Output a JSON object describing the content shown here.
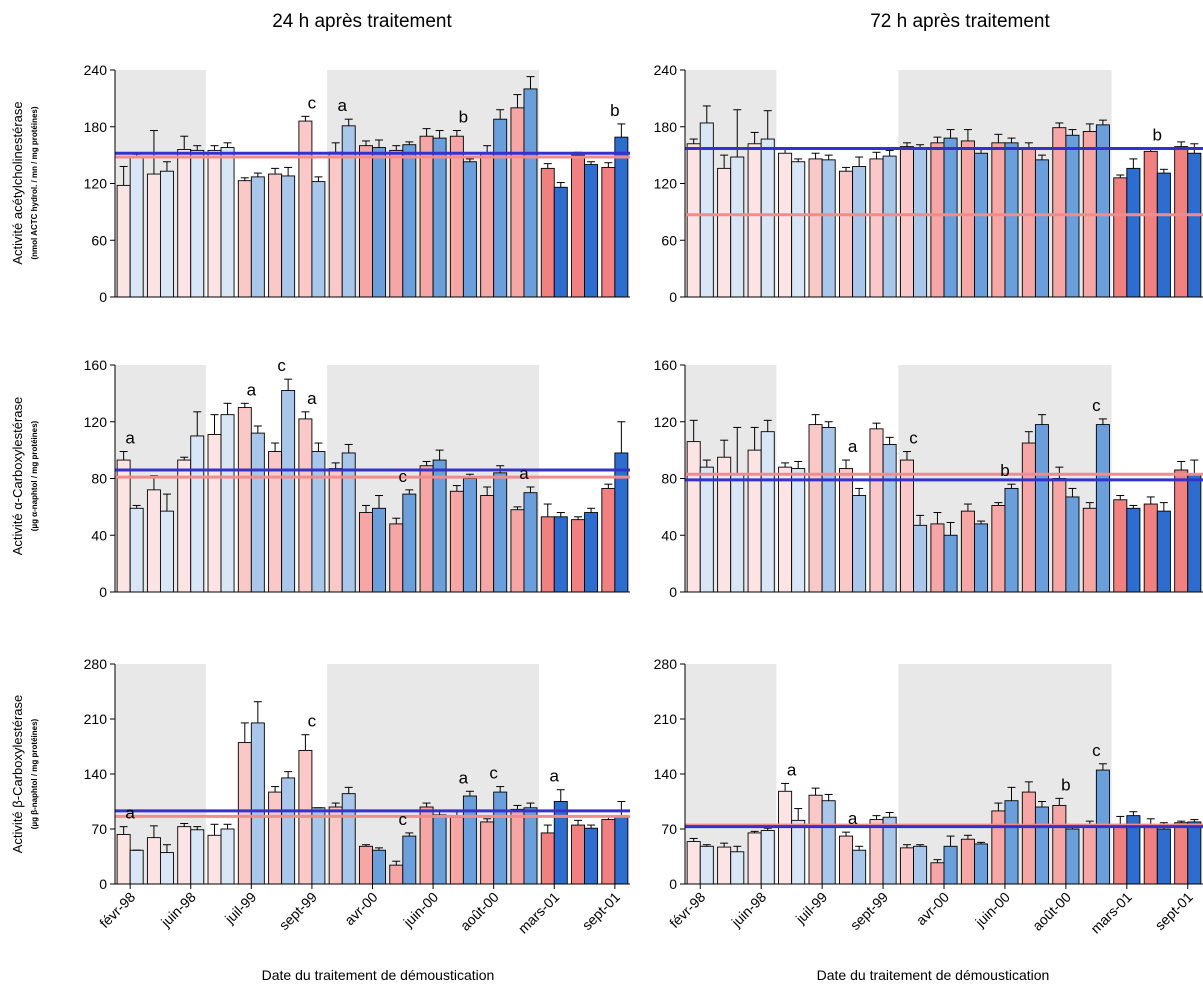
{
  "column_titles": [
    "24 h après traitement",
    "72 h après traitement"
  ],
  "x_axis_title": "Date du traitement de démoustication",
  "x_tick_labels": [
    "févr-98",
    "juin-98",
    "juil-99",
    "sept-99",
    "avr-00",
    "juin-00",
    "août-00",
    "mars-01",
    "sept-01"
  ],
  "row_ylabels": [
    {
      "main": "Activité acétylcholinestérase",
      "unit": "(nmol ACTC hydrol. / mn / mg protéines)"
    },
    {
      "main": "Activité α-Carboxylestérase",
      "unit": "(µg α-naphtol / mg protéines)"
    },
    {
      "main": "Activité β-Carboxylestérase",
      "unit": "(µg β-naphtol / mg protéines)"
    }
  ],
  "colors": {
    "pink_shades": [
      "#fde4e4",
      "#fbc8c8",
      "#f7a6a6",
      "#f18080"
    ],
    "blue_shades": [
      "#d8e6f5",
      "#a9c7ea",
      "#6a9fdc",
      "#2e6dd0"
    ],
    "pink_ref_line": "#f08c8c",
    "blue_ref_line": "#3333cc",
    "shade_band": "#e8e8e8"
  },
  "chart_data": [
    {
      "type": "bar",
      "panel": "24h",
      "row": 0,
      "ylim": [
        0,
        240
      ],
      "yticks": [
        0,
        60,
        120,
        180,
        240
      ],
      "shaded_pairs": [
        [
          0,
          2
        ],
        [
          7,
          13
        ]
      ],
      "pink": [
        118,
        130,
        156,
        155,
        123,
        130,
        186,
        153,
        160,
        155,
        170,
        170,
        152,
        200,
        136,
        150,
        137
      ],
      "pink_err": [
        20,
        46,
        14,
        5,
        3,
        6,
        5,
        10,
        5,
        5,
        8,
        6,
        8,
        14,
        5,
        3,
        5
      ],
      "blue": [
        148,
        133,
        155,
        158,
        127,
        128,
        122,
        181,
        158,
        161,
        168,
        143,
        188,
        220,
        116,
        140,
        169
      ],
      "blue_err": [
        3,
        10,
        5,
        5,
        4,
        9,
        5,
        7,
        8,
        3,
        8,
        3,
        10,
        13,
        5,
        3,
        14
      ],
      "ref_pink": 148,
      "ref_blue": 152,
      "annotations": [
        {
          "pair": 6,
          "text": "c"
        },
        {
          "pair": 7,
          "text": "a"
        },
        {
          "pair": 11,
          "text": "b"
        },
        {
          "pair": 16,
          "text": "b"
        }
      ]
    },
    {
      "type": "bar",
      "panel": "72h",
      "row": 0,
      "ylim": [
        0,
        240
      ],
      "yticks": [
        0,
        60,
        120,
        180,
        240
      ],
      "shaded_pairs": [
        [
          0,
          2
        ],
        [
          7,
          13
        ]
      ],
      "pink": [
        162,
        136,
        162,
        152,
        146,
        133,
        146,
        159,
        163,
        165,
        163,
        158,
        179,
        175,
        126,
        154,
        159
      ],
      "pink_err": [
        5,
        14,
        12,
        5,
        6,
        4,
        7,
        4,
        6,
        12,
        9,
        5,
        5,
        8,
        3,
        3,
        5
      ],
      "blue": [
        184,
        148,
        167,
        143,
        145,
        138,
        149,
        158,
        168,
        152,
        163,
        145,
        171,
        182,
        136,
        131,
        152
      ],
      "blue_err": [
        18,
        50,
        30,
        3,
        5,
        10,
        6,
        3,
        9,
        5,
        5,
        5,
        6,
        5,
        10,
        4,
        10
      ],
      "ref_pink": 87,
      "ref_blue": 157,
      "annotations": [
        {
          "pair": 15,
          "text": "b"
        }
      ]
    },
    {
      "type": "bar",
      "panel": "24h",
      "row": 1,
      "ylim": [
        0,
        160
      ],
      "yticks": [
        0,
        40,
        80,
        120,
        160
      ],
      "shaded_pairs": [
        [
          0,
          2
        ],
        [
          7,
          13
        ]
      ],
      "pink": [
        93,
        72,
        93,
        111,
        130,
        99,
        122,
        87,
        56,
        48,
        89,
        71,
        68,
        58,
        53,
        51,
        73
      ],
      "pink_err": [
        6,
        10,
        2,
        14,
        3,
        6,
        5,
        4,
        5,
        4,
        3,
        4,
        6,
        2,
        9,
        2,
        3
      ],
      "blue": [
        59,
        57,
        110,
        125,
        112,
        142,
        99,
        98,
        59,
        69,
        93,
        80,
        84,
        70,
        53,
        56,
        98
      ],
      "blue_err": [
        2,
        12,
        17,
        8,
        5,
        8,
        6,
        6,
        9,
        3,
        7,
        3,
        5,
        4,
        3,
        3,
        22
      ],
      "ref_pink": 81,
      "ref_blue": 86,
      "annotations": [
        {
          "pair": 0,
          "text": "a"
        },
        {
          "pair": 4,
          "text": "a"
        },
        {
          "pair": 5,
          "text": "c"
        },
        {
          "pair": 6,
          "text": "a"
        },
        {
          "pair": 9,
          "text": "c"
        },
        {
          "pair": 13,
          "text": "a"
        }
      ]
    },
    {
      "type": "bar",
      "panel": "72h",
      "row": 1,
      "ylim": [
        0,
        160
      ],
      "yticks": [
        0,
        40,
        80,
        120,
        160
      ],
      "shaded_pairs": [
        [
          0,
          2
        ],
        [
          7,
          13
        ]
      ],
      "pink": [
        106,
        95,
        100,
        88,
        118,
        87,
        115,
        93,
        48,
        57,
        61,
        105,
        80,
        59,
        65,
        62,
        86
      ],
      "pink_err": [
        15,
        12,
        16,
        3,
        7,
        6,
        4,
        6,
        8,
        5,
        2,
        8,
        8,
        4,
        3,
        5,
        6
      ],
      "blue": [
        88,
        83,
        113,
        87,
        116,
        68,
        104,
        47,
        40,
        48,
        73,
        118,
        67,
        118,
        59,
        57,
        83
      ],
      "blue_err": [
        5,
        33,
        8,
        5,
        4,
        5,
        5,
        7,
        9,
        2,
        3,
        7,
        6,
        4,
        2,
        6,
        10
      ],
      "ref_pink": 83,
      "ref_blue": 79,
      "annotations": [
        {
          "pair": 5,
          "text": "a"
        },
        {
          "pair": 7,
          "text": "c"
        },
        {
          "pair": 10,
          "text": "b"
        },
        {
          "pair": 13,
          "text": "c"
        }
      ]
    },
    {
      "type": "bar",
      "panel": "24h",
      "row": 2,
      "ylim": [
        0,
        280
      ],
      "yticks": [
        0,
        70,
        140,
        210,
        280
      ],
      "shaded_pairs": [
        [
          0,
          2
        ],
        [
          7,
          13
        ]
      ],
      "pink": [
        63,
        59,
        73,
        62,
        180,
        117,
        170,
        98,
        48,
        24,
        98,
        85,
        79,
        95,
        65,
        75,
        82
      ],
      "pink_err": [
        10,
        15,
        4,
        14,
        25,
        7,
        20,
        5,
        2,
        5,
        5,
        7,
        4,
        5,
        10,
        6,
        4
      ],
      "blue": [
        43,
        40,
        69,
        70,
        205,
        135,
        97,
        115,
        43,
        61,
        88,
        112,
        117,
        97,
        105,
        71,
        85
      ],
      "blue_err": [
        0,
        10,
        4,
        6,
        27,
        8,
        0,
        8,
        3,
        4,
        5,
        6,
        7,
        6,
        15,
        4,
        20
      ],
      "ref_pink": 86,
      "ref_blue": 93,
      "annotations": [
        {
          "pair": 0,
          "text": "a"
        },
        {
          "pair": 6,
          "text": "c"
        },
        {
          "pair": 9,
          "text": "c"
        },
        {
          "pair": 11,
          "text": "a"
        },
        {
          "pair": 12,
          "text": "c"
        },
        {
          "pair": 14,
          "text": "a"
        }
      ]
    },
    {
      "type": "bar",
      "panel": "72h",
      "row": 2,
      "ylim": [
        0,
        280
      ],
      "yticks": [
        0,
        70,
        140,
        210,
        280
      ],
      "shaded_pairs": [
        [
          0,
          2
        ],
        [
          7,
          13
        ]
      ],
      "pink": [
        54,
        47,
        65,
        118,
        113,
        61,
        82,
        46,
        27,
        57,
        93,
        117,
        100,
        75,
        76,
        75,
        78
      ],
      "pink_err": [
        4,
        5,
        2,
        10,
        9,
        5,
        5,
        4,
        4,
        5,
        10,
        13,
        9,
        5,
        10,
        8,
        2
      ],
      "blue": [
        48,
        41,
        68,
        81,
        106,
        43,
        85,
        48,
        48,
        51,
        106,
        98,
        70,
        145,
        87,
        70,
        79
      ],
      "blue_err": [
        2,
        7,
        3,
        15,
        8,
        5,
        6,
        2,
        13,
        2,
        17,
        7,
        3,
        8,
        5,
        8,
        3
      ],
      "ref_pink": 75,
      "ref_blue": 73,
      "annotations": [
        {
          "pair": 3,
          "text": "a"
        },
        {
          "pair": 5,
          "text": "a"
        },
        {
          "pair": 12,
          "text": "b"
        },
        {
          "pair": 13,
          "text": "c"
        }
      ]
    }
  ]
}
